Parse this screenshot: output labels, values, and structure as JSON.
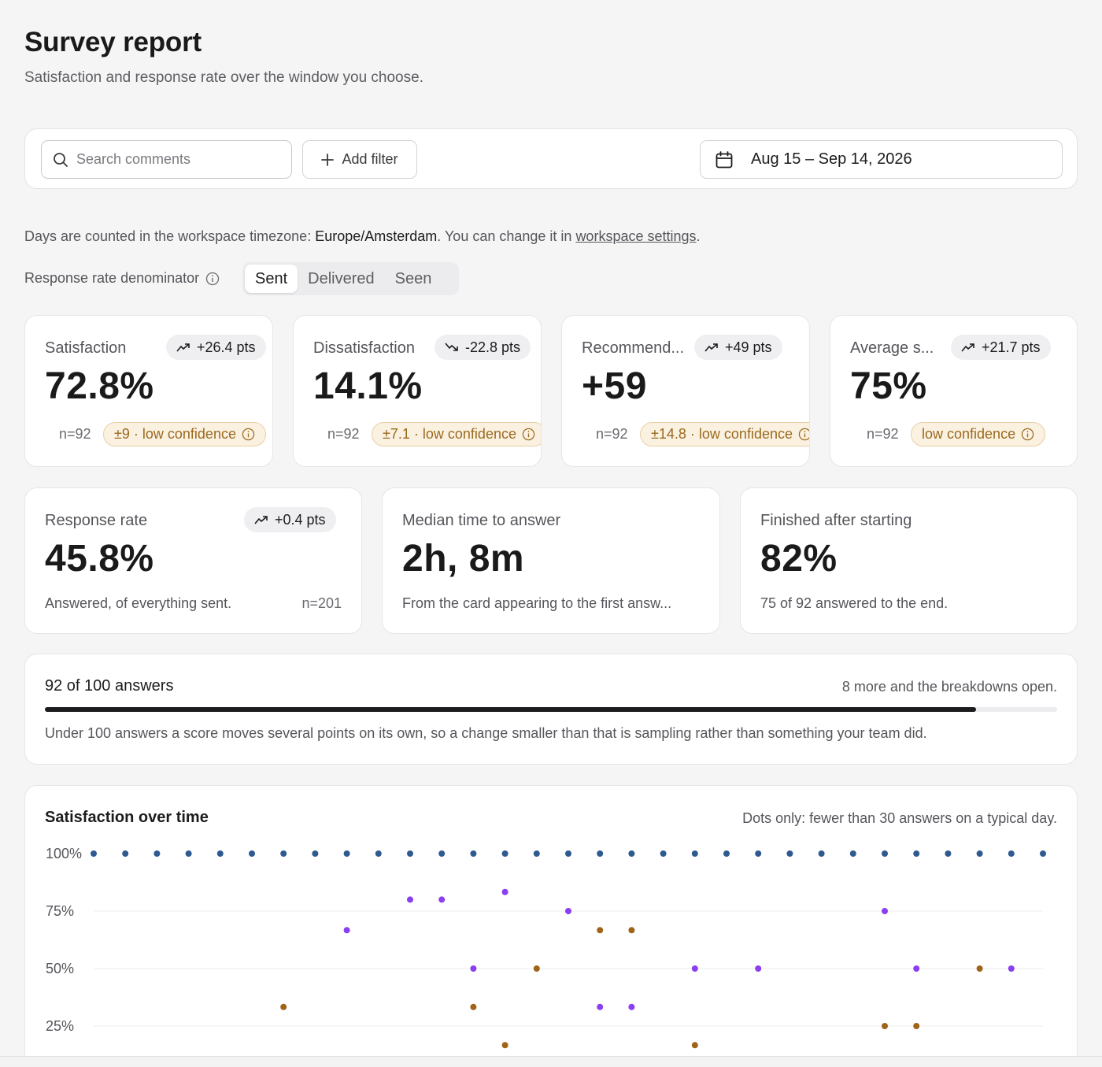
{
  "header": {
    "title": "Survey report",
    "subtitle": "Satisfaction and response rate over the window you choose."
  },
  "toolbar": {
    "search_placeholder": "Search comments",
    "add_filter_label": "Add filter",
    "date_range": "Aug 15 – Sep 14, 2026"
  },
  "timezone_note": {
    "prefix": "Days are counted in the workspace timezone: ",
    "timezone": "Europe/Amsterdam",
    "middle": ". You can change it in ",
    "link": "workspace settings",
    "suffix": "."
  },
  "denominator": {
    "label": "Response rate denominator",
    "options": [
      "Sent",
      "Delivered",
      "Seen"
    ],
    "selected": "Sent"
  },
  "kpis": [
    {
      "label": "Satisfaction",
      "value": "72.8%",
      "delta": "+26.4 pts",
      "trend": "up",
      "n": "n=92",
      "confidence": "±9 · low confidence"
    },
    {
      "label": "Dissatisfaction",
      "value": "14.1%",
      "delta": "-22.8 pts",
      "trend": "down",
      "n": "n=92",
      "confidence": "±7.1 · low confidence"
    },
    {
      "label": "Recommend...",
      "value": "+59",
      "delta": "+49 pts",
      "trend": "up",
      "n": "n=92",
      "confidence": "±14.8 · low confidence"
    },
    {
      "label": "Average s...",
      "value": "75%",
      "delta": "+21.7 pts",
      "trend": "up",
      "n": "n=92",
      "confidence": "low confidence"
    }
  ],
  "metrics": [
    {
      "label": "Response rate",
      "value": "45.8%",
      "delta": "+0.4 pts",
      "foot": "Answered, of everything sent.",
      "n": "n=201"
    },
    {
      "label": "Median time to answer",
      "value": "2h, 8m",
      "foot": "From the card appearing to the first answ..."
    },
    {
      "label": "Finished after starting",
      "value": "82%",
      "foot": "75 of 92 answered to the end."
    }
  ],
  "progress": {
    "title": "92 of 100 answers",
    "hint": "8 more and the breakdowns open.",
    "fraction": 0.92,
    "note": "Under 100 answers a score moves several points on its own, so a change smaller than that is sampling rather than something your team did."
  },
  "chart_data": {
    "type": "scatter",
    "title": "Satisfaction over time",
    "note": "Dots only: fewer than 30 answers on a typical day.",
    "y_ticks": [
      "100%",
      "75%",
      "50%",
      "25%"
    ],
    "ylim": [
      0,
      100
    ],
    "x_count": 31,
    "grid": true,
    "colors": {
      "blue": "#2f5a8f",
      "purple": "#8a3ff0",
      "brown": "#a06418"
    },
    "series": [
      {
        "color_key": "blue",
        "points": [
          [
            0,
            100
          ],
          [
            1,
            100
          ],
          [
            2,
            100
          ],
          [
            3,
            100
          ],
          [
            4,
            100
          ],
          [
            5,
            100
          ],
          [
            6,
            100
          ],
          [
            7,
            100
          ],
          [
            8,
            100
          ],
          [
            9,
            100
          ],
          [
            10,
            100
          ],
          [
            11,
            100
          ],
          [
            12,
            100
          ],
          [
            13,
            100
          ],
          [
            14,
            100
          ],
          [
            15,
            100
          ],
          [
            16,
            100
          ],
          [
            17,
            100
          ],
          [
            18,
            100
          ],
          [
            19,
            100
          ],
          [
            20,
            100
          ],
          [
            21,
            100
          ],
          [
            22,
            100
          ],
          [
            23,
            100
          ],
          [
            24,
            100
          ],
          [
            25,
            100
          ],
          [
            26,
            100
          ],
          [
            27,
            100
          ],
          [
            28,
            100
          ],
          [
            29,
            100
          ],
          [
            30,
            100
          ]
        ]
      },
      {
        "color_key": "purple",
        "points": [
          [
            8,
            66.7
          ],
          [
            10,
            80
          ],
          [
            11,
            80
          ],
          [
            12,
            50
          ],
          [
            13,
            83.3
          ],
          [
            15,
            75
          ],
          [
            16,
            33.3
          ],
          [
            17,
            33.3
          ],
          [
            19,
            50
          ],
          [
            21,
            50
          ],
          [
            25,
            75
          ],
          [
            26,
            50
          ],
          [
            29,
            50
          ]
        ]
      },
      {
        "color_key": "brown",
        "points": [
          [
            6,
            33.3
          ],
          [
            12,
            33.3
          ],
          [
            13,
            16.7
          ],
          [
            14,
            50
          ],
          [
            16,
            66.7
          ],
          [
            17,
            66.7
          ],
          [
            19,
            16.7
          ],
          [
            25,
            25
          ],
          [
            26,
            25
          ],
          [
            28,
            50
          ]
        ]
      }
    ]
  }
}
